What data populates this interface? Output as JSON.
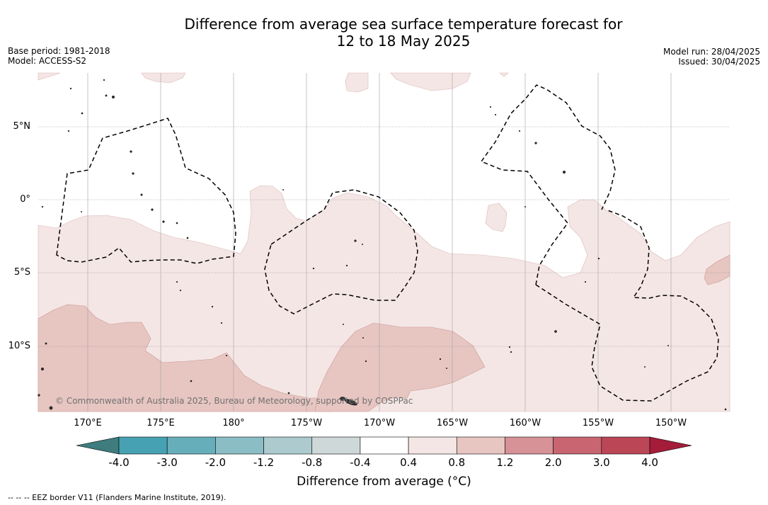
{
  "title_line1": "Difference from average sea surface temperature forecast for",
  "title_line2": "12 to 18 May 2025",
  "base_period": "Base period: 1981-2018",
  "model": "Model: ACCESS-S2",
  "model_run": "Model run: 28/04/2025",
  "issued": "Issued: 30/04/2025",
  "credit": "© Commonwealth of Australia 2025, Bureau of Meteorology, supported by COSPPac",
  "footnote": "--  --  -- EEZ border V11 (Flanders Marine Institute, 2019).",
  "lat_labels": [
    "5°N",
    "0°",
    "5°S",
    "10°S"
  ],
  "lon_labels": [
    "170°E",
    "175°E",
    "180°",
    "175°W",
    "170°W",
    "165°W",
    "160°W",
    "155°W",
    "150°W"
  ],
  "colorbar": {
    "label": "Difference from average (°C)",
    "ticks": [
      "-4.0",
      "-3.0",
      "-2.0",
      "-1.2",
      "-0.8",
      "-0.4",
      "0.4",
      "0.8",
      "1.2",
      "2.0",
      "3.0",
      "4.0"
    ],
    "colors": [
      "#46a2b2",
      "#67aebb",
      "#8bbdc5",
      "#adcbce",
      "#cfd8d8",
      "#ffffff",
      "#f4e6e5",
      "#e7c6c2",
      "#d69297",
      "#c86571",
      "#bb4656"
    ],
    "under_color": "#3e7c7e",
    "over_color": "#a51c3a"
  },
  "map": {
    "lat_range": [
      -14.5,
      8.5
    ],
    "lon_range": [
      166.5,
      213.5
    ],
    "shading_levels": [
      "0.4 to 0.8",
      "0.8 to 1.2"
    ],
    "eez_border": "dashed"
  }
}
